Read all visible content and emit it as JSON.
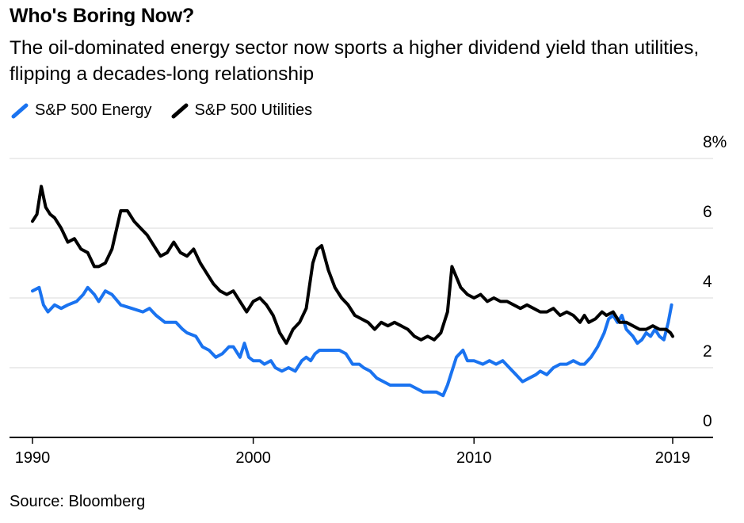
{
  "header": {
    "title": "Who's Boring Now?",
    "subtitle": "The oil-dominated energy sector now sports a higher dividend yield than utilities, flipping a decades-long relationship"
  },
  "footer": {
    "source": "Source: Bloomberg"
  },
  "colors": {
    "energy": "#1a73f0",
    "utilities": "#000000",
    "grid": "#e6e6e6",
    "axis": "#000000"
  },
  "chart_data": {
    "type": "line",
    "title": "Who's Boring Now?",
    "subtitle": "The oil-dominated energy sector now sports a higher dividend yield than utilities, flipping a decades-long relationship",
    "xlabel": "",
    "ylabel": "",
    "xlim": [
      1990,
      2019.3
    ],
    "ylim": [
      0,
      8
    ],
    "x_ticks": [
      1990,
      2000,
      2010,
      2019
    ],
    "x_tick_labels": [
      "1990",
      "2000",
      "2010",
      "2019"
    ],
    "y_ticks": [
      0,
      2,
      4,
      6,
      8
    ],
    "y_tick_labels": [
      "0",
      "2",
      "4",
      "6",
      "8%"
    ],
    "grid": true,
    "legend_position": "top-left",
    "series": [
      {
        "name": "S&P 500 Energy",
        "color": "#1a73f0",
        "points": [
          [
            1990.0,
            4.2
          ],
          [
            1990.3,
            4.3
          ],
          [
            1990.5,
            3.8
          ],
          [
            1990.7,
            3.6
          ],
          [
            1991.0,
            3.8
          ],
          [
            1991.3,
            3.7
          ],
          [
            1991.6,
            3.8
          ],
          [
            1992.0,
            3.9
          ],
          [
            1992.3,
            4.1
          ],
          [
            1992.5,
            4.3
          ],
          [
            1992.8,
            4.1
          ],
          [
            1993.0,
            3.9
          ],
          [
            1993.3,
            4.2
          ],
          [
            1993.6,
            4.1
          ],
          [
            1994.0,
            3.8
          ],
          [
            1994.5,
            3.7
          ],
          [
            1995.0,
            3.6
          ],
          [
            1995.3,
            3.7
          ],
          [
            1995.6,
            3.5
          ],
          [
            1996.0,
            3.3
          ],
          [
            1996.5,
            3.3
          ],
          [
            1996.8,
            3.1
          ],
          [
            1997.0,
            3.0
          ],
          [
            1997.4,
            2.9
          ],
          [
            1997.7,
            2.6
          ],
          [
            1998.0,
            2.5
          ],
          [
            1998.3,
            2.3
          ],
          [
            1998.6,
            2.4
          ],
          [
            1998.9,
            2.6
          ],
          [
            1999.1,
            2.6
          ],
          [
            1999.4,
            2.3
          ],
          [
            1999.6,
            2.7
          ],
          [
            1999.8,
            2.3
          ],
          [
            2000.0,
            2.2
          ],
          [
            2000.3,
            2.2
          ],
          [
            2000.5,
            2.1
          ],
          [
            2000.8,
            2.2
          ],
          [
            2001.0,
            2.0
          ],
          [
            2001.3,
            1.9
          ],
          [
            2001.6,
            2.0
          ],
          [
            2001.9,
            1.9
          ],
          [
            2002.2,
            2.2
          ],
          [
            2002.4,
            2.3
          ],
          [
            2002.6,
            2.2
          ],
          [
            2002.8,
            2.4
          ],
          [
            2003.0,
            2.5
          ],
          [
            2003.3,
            2.5
          ],
          [
            2003.6,
            2.5
          ],
          [
            2003.9,
            2.5
          ],
          [
            2004.2,
            2.4
          ],
          [
            2004.5,
            2.1
          ],
          [
            2004.8,
            2.1
          ],
          [
            2005.0,
            2.0
          ],
          [
            2005.3,
            1.9
          ],
          [
            2005.6,
            1.7
          ],
          [
            2005.9,
            1.6
          ],
          [
            2006.2,
            1.5
          ],
          [
            2006.5,
            1.5
          ],
          [
            2006.8,
            1.5
          ],
          [
            2007.1,
            1.5
          ],
          [
            2007.4,
            1.4
          ],
          [
            2007.7,
            1.3
          ],
          [
            2008.0,
            1.3
          ],
          [
            2008.3,
            1.3
          ],
          [
            2008.6,
            1.2
          ],
          [
            2008.8,
            1.5
          ],
          [
            2009.0,
            1.9
          ],
          [
            2009.2,
            2.3
          ],
          [
            2009.5,
            2.5
          ],
          [
            2009.7,
            2.2
          ],
          [
            2010.0,
            2.2
          ],
          [
            2010.4,
            2.1
          ],
          [
            2010.7,
            2.2
          ],
          [
            2011.0,
            2.1
          ],
          [
            2011.3,
            2.2
          ],
          [
            2011.6,
            2.0
          ],
          [
            2011.9,
            1.8
          ],
          [
            2012.2,
            1.6
          ],
          [
            2012.5,
            1.7
          ],
          [
            2012.8,
            1.8
          ],
          [
            2013.0,
            1.9
          ],
          [
            2013.3,
            1.8
          ],
          [
            2013.6,
            2.0
          ],
          [
            2013.9,
            2.1
          ],
          [
            2014.2,
            2.1
          ],
          [
            2014.5,
            2.2
          ],
          [
            2014.8,
            2.1
          ],
          [
            2015.0,
            2.1
          ],
          [
            2015.3,
            2.3
          ],
          [
            2015.6,
            2.6
          ],
          [
            2015.9,
            3.0
          ],
          [
            2016.1,
            3.4
          ],
          [
            2016.3,
            3.5
          ],
          [
            2016.5,
            3.3
          ],
          [
            2016.7,
            3.5
          ],
          [
            2016.9,
            3.1
          ],
          [
            2017.2,
            2.9
          ],
          [
            2017.4,
            2.7
          ],
          [
            2017.6,
            2.8
          ],
          [
            2017.8,
            3.0
          ],
          [
            2018.0,
            2.9
          ],
          [
            2018.2,
            3.1
          ],
          [
            2018.4,
            2.9
          ],
          [
            2018.6,
            2.8
          ],
          [
            2018.8,
            3.3
          ],
          [
            2018.95,
            3.8
          ]
        ]
      },
      {
        "name": "S&P 500 Utilities",
        "color": "#000000",
        "points": [
          [
            1990.0,
            6.2
          ],
          [
            1990.2,
            6.4
          ],
          [
            1990.4,
            7.2
          ],
          [
            1990.6,
            6.6
          ],
          [
            1990.8,
            6.4
          ],
          [
            1991.0,
            6.3
          ],
          [
            1991.3,
            6.0
          ],
          [
            1991.6,
            5.6
          ],
          [
            1991.9,
            5.7
          ],
          [
            1992.2,
            5.4
          ],
          [
            1992.5,
            5.3
          ],
          [
            1992.8,
            4.9
          ],
          [
            1993.0,
            4.9
          ],
          [
            1993.3,
            5.0
          ],
          [
            1993.6,
            5.4
          ],
          [
            1994.0,
            6.5
          ],
          [
            1994.3,
            6.5
          ],
          [
            1994.6,
            6.2
          ],
          [
            1994.9,
            6.0
          ],
          [
            1995.2,
            5.8
          ],
          [
            1995.5,
            5.5
          ],
          [
            1995.8,
            5.2
          ],
          [
            1996.1,
            5.3
          ],
          [
            1996.4,
            5.6
          ],
          [
            1996.7,
            5.3
          ],
          [
            1997.0,
            5.2
          ],
          [
            1997.3,
            5.4
          ],
          [
            1997.6,
            5.0
          ],
          [
            1997.9,
            4.7
          ],
          [
            1998.2,
            4.4
          ],
          [
            1998.5,
            4.2
          ],
          [
            1998.8,
            4.1
          ],
          [
            1999.1,
            4.2
          ],
          [
            1999.4,
            3.9
          ],
          [
            1999.7,
            3.6
          ],
          [
            2000.0,
            3.9
          ],
          [
            2000.3,
            4.0
          ],
          [
            2000.6,
            3.8
          ],
          [
            2000.9,
            3.5
          ],
          [
            2001.2,
            3.0
          ],
          [
            2001.5,
            2.7
          ],
          [
            2001.8,
            3.1
          ],
          [
            2002.1,
            3.3
          ],
          [
            2002.4,
            3.7
          ],
          [
            2002.7,
            5.0
          ],
          [
            2002.9,
            5.4
          ],
          [
            2003.1,
            5.5
          ],
          [
            2003.4,
            4.8
          ],
          [
            2003.7,
            4.3
          ],
          [
            2004.0,
            4.0
          ],
          [
            2004.3,
            3.8
          ],
          [
            2004.6,
            3.5
          ],
          [
            2004.9,
            3.4
          ],
          [
            2005.2,
            3.3
          ],
          [
            2005.5,
            3.1
          ],
          [
            2005.8,
            3.3
          ],
          [
            2006.1,
            3.2
          ],
          [
            2006.4,
            3.3
          ],
          [
            2006.7,
            3.2
          ],
          [
            2007.0,
            3.1
          ],
          [
            2007.3,
            2.9
          ],
          [
            2007.6,
            2.8
          ],
          [
            2007.9,
            2.9
          ],
          [
            2008.2,
            2.8
          ],
          [
            2008.5,
            3.0
          ],
          [
            2008.8,
            3.6
          ],
          [
            2009.0,
            4.9
          ],
          [
            2009.2,
            4.6
          ],
          [
            2009.4,
            4.3
          ],
          [
            2009.7,
            4.1
          ],
          [
            2010.0,
            4.0
          ],
          [
            2010.3,
            4.1
          ],
          [
            2010.6,
            3.9
          ],
          [
            2010.9,
            4.0
          ],
          [
            2011.2,
            3.9
          ],
          [
            2011.5,
            3.9
          ],
          [
            2011.8,
            3.8
          ],
          [
            2012.1,
            3.7
          ],
          [
            2012.4,
            3.8
          ],
          [
            2012.7,
            3.7
          ],
          [
            2013.0,
            3.6
          ],
          [
            2013.3,
            3.6
          ],
          [
            2013.6,
            3.7
          ],
          [
            2013.9,
            3.5
          ],
          [
            2014.2,
            3.6
          ],
          [
            2014.5,
            3.5
          ],
          [
            2014.8,
            3.3
          ],
          [
            2015.0,
            3.5
          ],
          [
            2015.2,
            3.3
          ],
          [
            2015.5,
            3.4
          ],
          [
            2015.8,
            3.6
          ],
          [
            2016.0,
            3.5
          ],
          [
            2016.3,
            3.6
          ],
          [
            2016.6,
            3.3
          ],
          [
            2016.9,
            3.3
          ],
          [
            2017.2,
            3.2
          ],
          [
            2017.5,
            3.1
          ],
          [
            2017.8,
            3.1
          ],
          [
            2018.1,
            3.2
          ],
          [
            2018.4,
            3.1
          ],
          [
            2018.7,
            3.1
          ],
          [
            2018.9,
            3.0
          ],
          [
            2019.0,
            2.9
          ]
        ]
      }
    ]
  }
}
